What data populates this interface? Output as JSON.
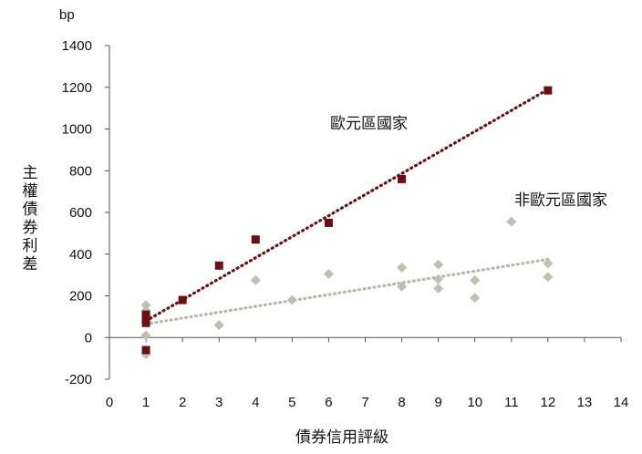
{
  "chart_data": {
    "type": "scatter",
    "title": "",
    "unit_label": "bp",
    "xlabel": "債券信用評級",
    "ylabel": "主權債券利差",
    "xlim": [
      0,
      14
    ],
    "ylim": [
      -200,
      1400
    ],
    "x_ticks": [
      "0",
      "1",
      "2",
      "3",
      "4",
      "5",
      "6",
      "7",
      "8",
      "9",
      "10",
      "11",
      "12",
      "13",
      "14"
    ],
    "y_ticks": [
      "-200",
      "0",
      "200",
      "400",
      "600",
      "800",
      "1000",
      "1200",
      "1400"
    ],
    "grid": false,
    "series": [
      {
        "name": "歐元區國家",
        "color": "#6b1010",
        "marker": "square",
        "points": [
          [
            1,
            -60
          ],
          [
            1,
            70
          ],
          [
            1,
            90
          ],
          [
            1,
            110
          ],
          [
            2,
            180
          ],
          [
            3,
            345
          ],
          [
            4,
            470
          ],
          [
            6,
            550
          ],
          [
            8,
            760
          ],
          [
            12,
            1185
          ]
        ],
        "trend": [
          [
            1,
            80
          ],
          [
            12,
            1190
          ]
        ],
        "trend_color": "#6b1010"
      },
      {
        "name": "非歐元區國家",
        "color": "#c0c0b0",
        "marker": "diamond",
        "points": [
          [
            1,
            -80
          ],
          [
            1,
            10
          ],
          [
            1,
            75
          ],
          [
            1,
            130
          ],
          [
            1,
            155
          ],
          [
            3,
            60
          ],
          [
            4,
            275
          ],
          [
            5,
            180
          ],
          [
            6,
            305
          ],
          [
            8,
            245
          ],
          [
            8,
            335
          ],
          [
            9,
            235
          ],
          [
            9,
            280
          ],
          [
            9,
            350
          ],
          [
            10,
            190
          ],
          [
            10,
            275
          ],
          [
            11,
            555
          ],
          [
            12,
            290
          ],
          [
            12,
            355
          ]
        ],
        "trend": [
          [
            1,
            65
          ],
          [
            12,
            375
          ]
        ],
        "trend_color": "#b8b8a8"
      }
    ]
  }
}
